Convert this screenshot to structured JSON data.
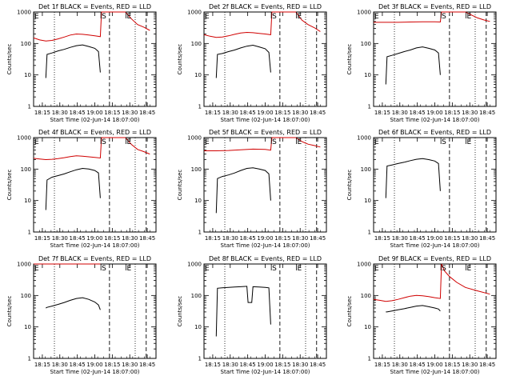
{
  "chart_data": [
    {
      "type": "line",
      "title": "Det 1f BLACK = Events, RED = LLD",
      "xlabel": "Start Time (02-Jun-14 18:07:00)",
      "ylabel": "Counts/sec",
      "yscale": "log",
      "ylim": [
        1,
        1000
      ],
      "yticks": [
        "1",
        "10",
        "100",
        "1000"
      ],
      "xtick_labels": [
        "18:15",
        "18:30",
        "18:45",
        "19:00",
        "18:15",
        "18:30",
        "18:45"
      ],
      "segment_marks": [
        {
          "label": "E",
          "x": 0.0
        },
        {
          "label": "S",
          "x": 0.55
        },
        {
          "label": "E",
          "x": 0.755
        }
      ],
      "series": [
        {
          "name": "BLACK",
          "color": "#000000",
          "x": [
            0.1,
            0.11,
            0.15,
            0.2,
            0.25,
            0.3,
            0.35,
            0.4,
            0.45,
            0.5,
            0.53,
            0.545
          ],
          "y": [
            8,
            45,
            50,
            58,
            65,
            75,
            85,
            90,
            80,
            70,
            55,
            12
          ]
        },
        {
          "name": "RED",
          "color": "#d00000",
          "x": [
            0.0,
            0.05,
            0.1,
            0.15,
            0.2,
            0.25,
            0.3,
            0.35,
            0.4,
            0.45,
            0.5,
            0.545,
            0.555,
            0.7,
            0.75,
            0.8,
            0.85,
            0.9,
            0.95
          ],
          "y": [
            150,
            130,
            120,
            125,
            140,
            160,
            185,
            200,
            195,
            185,
            175,
            165,
            1000,
            1000,
            1000,
            600,
            400,
            330,
            260
          ]
        }
      ]
    },
    {
      "type": "line",
      "title": "Det 2f BLACK = Events, RED = LLD",
      "xlabel": "Start Time (02-Jun-14 18:07:00)",
      "ylabel": "Counts/sec",
      "yscale": "log",
      "ylim": [
        1,
        1000
      ],
      "yticks": [
        "1",
        "10",
        "100",
        "1000"
      ],
      "xtick_labels": [
        "18:15",
        "18:30",
        "18:45",
        "19:00",
        "18:15",
        "18:30",
        "18:45"
      ],
      "segment_marks": [
        {
          "label": "E",
          "x": 0.0
        },
        {
          "label": "S",
          "x": 0.55
        },
        {
          "label": "E",
          "x": 0.755
        }
      ],
      "series": [
        {
          "name": "BLACK",
          "color": "#000000",
          "x": [
            0.1,
            0.11,
            0.15,
            0.2,
            0.25,
            0.3,
            0.35,
            0.4,
            0.45,
            0.5,
            0.53,
            0.545
          ],
          "y": [
            8,
            45,
            48,
            55,
            62,
            72,
            82,
            88,
            78,
            68,
            52,
            12
          ]
        },
        {
          "name": "RED",
          "color": "#d00000",
          "x": [
            0.0,
            0.05,
            0.1,
            0.15,
            0.2,
            0.25,
            0.3,
            0.35,
            0.4,
            0.45,
            0.5,
            0.545,
            0.555,
            0.7,
            0.75,
            0.8,
            0.85,
            0.9,
            0.95
          ],
          "y": [
            190,
            170,
            155,
            160,
            175,
            195,
            215,
            225,
            220,
            210,
            200,
            190,
            1000,
            1000,
            1000,
            550,
            400,
            320,
            240
          ]
        }
      ]
    },
    {
      "type": "line",
      "title": "Det 3f BLACK = Events, RED = LLD",
      "xlabel": "Start Time (02-Jun-14 18:07:00)",
      "ylabel": "Counts/sec",
      "yscale": "log",
      "ylim": [
        1,
        1000
      ],
      "yticks": [
        "1",
        "10",
        "100",
        "1000"
      ],
      "xtick_labels": [
        "18:15",
        "18:30",
        "18:45",
        "19:00",
        "18:15",
        "18:30",
        "18:45"
      ],
      "segment_marks": [
        {
          "label": "E",
          "x": 0.0
        },
        {
          "label": "S",
          "x": 0.55
        },
        {
          "label": "E",
          "x": 0.755
        }
      ],
      "series": [
        {
          "name": "BLACK",
          "color": "#000000",
          "x": [
            0.1,
            0.11,
            0.15,
            0.2,
            0.25,
            0.3,
            0.35,
            0.4,
            0.45,
            0.5,
            0.53,
            0.545
          ],
          "y": [
            5,
            38,
            42,
            48,
            55,
            62,
            72,
            78,
            70,
            62,
            50,
            10
          ]
        },
        {
          "name": "RED",
          "color": "#d00000",
          "x": [
            0.0,
            0.1,
            0.2,
            0.3,
            0.4,
            0.5,
            0.545,
            0.555,
            0.7,
            0.75,
            0.8,
            0.85,
            0.9,
            0.95
          ],
          "y": [
            470,
            470,
            470,
            480,
            490,
            490,
            480,
            1000,
            1000,
            1000,
            800,
            650,
            560,
            500
          ]
        }
      ]
    },
    {
      "type": "line",
      "title": "Det 4f BLACK = Events, RED = LLD",
      "xlabel": "Start Time (02-Jun-14 18:07:00)",
      "ylabel": "Counts/sec",
      "yscale": "log",
      "ylim": [
        1,
        1000
      ],
      "yticks": [
        "1",
        "10",
        "100",
        "1000"
      ],
      "xtick_labels": [
        "18:15",
        "18:30",
        "18:45",
        "19:00",
        "18:15",
        "18:30",
        "18:45"
      ],
      "segment_marks": [
        {
          "label": "E",
          "x": 0.0
        },
        {
          "label": "S",
          "x": 0.55
        },
        {
          "label": "E",
          "x": 0.755
        }
      ],
      "series": [
        {
          "name": "BLACK",
          "color": "#000000",
          "x": [
            0.1,
            0.11,
            0.15,
            0.2,
            0.25,
            0.3,
            0.35,
            0.4,
            0.45,
            0.5,
            0.53,
            0.545
          ],
          "y": [
            5,
            45,
            55,
            62,
            70,
            82,
            95,
            105,
            100,
            90,
            75,
            12
          ]
        },
        {
          "name": "RED",
          "color": "#d00000",
          "x": [
            0.0,
            0.05,
            0.1,
            0.15,
            0.2,
            0.25,
            0.3,
            0.35,
            0.4,
            0.45,
            0.5,
            0.545,
            0.555,
            0.7,
            0.75,
            0.8,
            0.85,
            0.9,
            0.95
          ],
          "y": [
            220,
            210,
            200,
            205,
            215,
            230,
            250,
            265,
            255,
            245,
            235,
            225,
            1000,
            1000,
            1000,
            600,
            420,
            360,
            300
          ]
        }
      ]
    },
    {
      "type": "line",
      "title": "Det 5f BLACK = Events, RED = LLD",
      "xlabel": "Start Time (02-Jun-14 18:07:00)",
      "ylabel": "Counts/sec",
      "yscale": "log",
      "ylim": [
        1,
        1000
      ],
      "yticks": [
        "1",
        "10",
        "100",
        "1000"
      ],
      "xtick_labels": [
        "18:15",
        "18:30",
        "18:45",
        "19:00",
        "18:15",
        "18:30",
        "18:45"
      ],
      "segment_marks": [
        {
          "label": "E",
          "x": 0.0
        },
        {
          "label": "S",
          "x": 0.55
        },
        {
          "label": "E",
          "x": 0.755
        }
      ],
      "series": [
        {
          "name": "BLACK",
          "color": "#000000",
          "x": [
            0.1,
            0.11,
            0.15,
            0.2,
            0.25,
            0.3,
            0.35,
            0.4,
            0.45,
            0.5,
            0.53,
            0.545
          ],
          "y": [
            4,
            50,
            58,
            65,
            75,
            90,
            105,
            110,
            100,
            90,
            70,
            10
          ]
        },
        {
          "name": "RED",
          "color": "#d00000",
          "x": [
            0.0,
            0.1,
            0.2,
            0.3,
            0.4,
            0.5,
            0.545,
            0.555,
            0.7,
            0.75,
            0.8,
            0.85,
            0.9,
            0.95
          ],
          "y": [
            380,
            380,
            390,
            410,
            430,
            420,
            400,
            1000,
            1000,
            1000,
            750,
            620,
            560,
            500
          ]
        }
      ]
    },
    {
      "type": "line",
      "title": "Det 6f BLACK = Events, RED = LLD",
      "xlabel": "Start Time (02-Jun-14 18:07:00)",
      "ylabel": "Counts/sec",
      "yscale": "log",
      "ylim": [
        1,
        1000
      ],
      "yticks": [
        "1",
        "10",
        "100",
        "1000"
      ],
      "xtick_labels": [
        "18:15",
        "18:30",
        "18:45",
        "19:00",
        "18:15",
        "18:30",
        "18:45"
      ],
      "segment_marks": [
        {
          "label": "E",
          "x": 0.0
        },
        {
          "label": "S",
          "x": 0.55
        },
        {
          "label": "E",
          "x": 0.755
        }
      ],
      "series": [
        {
          "name": "BLACK",
          "color": "#000000",
          "x": [
            0.1,
            0.11,
            0.15,
            0.2,
            0.25,
            0.3,
            0.35,
            0.4,
            0.45,
            0.5,
            0.53,
            0.545
          ],
          "y": [
            12,
            125,
            135,
            150,
            165,
            185,
            205,
            215,
            200,
            180,
            150,
            20
          ]
        }
      ]
    },
    {
      "type": "line",
      "title": "Det 7f BLACK = Events, RED = LLD",
      "xlabel": "Start Time (02-Jun-14 18:07:00)",
      "ylabel": "Counts/sec",
      "yscale": "log",
      "ylim": [
        1,
        1000
      ],
      "yticks": [
        "1",
        "10",
        "100",
        "1000"
      ],
      "xtick_labels": [
        "18:15",
        "18:30",
        "18:45",
        "19:00",
        "18:15",
        "18:30",
        "18:45"
      ],
      "segment_marks": [
        {
          "label": "E",
          "x": 0.0
        },
        {
          "label": "S",
          "x": 0.55
        },
        {
          "label": "E",
          "x": 0.755
        }
      ],
      "series": [
        {
          "name": "BLACK",
          "color": "#000000",
          "x": [
            0.1,
            0.11,
            0.15,
            0.2,
            0.25,
            0.3,
            0.35,
            0.4,
            0.45,
            0.5,
            0.53,
            0.545
          ],
          "y": [
            40,
            42,
            46,
            52,
            60,
            70,
            80,
            85,
            75,
            62,
            50,
            35
          ]
        },
        {
          "name": "RED",
          "color": "#d00000",
          "x": [
            0.0,
            0.2,
            0.4,
            0.545
          ],
          "y": [
            1000,
            1000,
            1000,
            1000
          ]
        }
      ]
    },
    {
      "type": "line",
      "title": "Det 8f BLACK = Events, RED = LLD",
      "xlabel": "Start Time (02-Jun-14 18:07:00)",
      "ylabel": "Counts/sec",
      "yscale": "log",
      "ylim": [
        1,
        1000
      ],
      "yticks": [
        "1",
        "10",
        "100",
        "1000"
      ],
      "xtick_labels": [
        "18:15",
        "18:30",
        "18:45",
        "19:00",
        "18:15",
        "18:30",
        "18:45"
      ],
      "segment_marks": [
        {
          "label": "E",
          "x": 0.0
        },
        {
          "label": "S",
          "x": 0.55
        },
        {
          "label": "E",
          "x": 0.755
        }
      ],
      "series": [
        {
          "name": "BLACK",
          "color": "#000000",
          "x": [
            0.1,
            0.11,
            0.15,
            0.2,
            0.25,
            0.3,
            0.35,
            0.36,
            0.39,
            0.4,
            0.45,
            0.5,
            0.53,
            0.545
          ],
          "y": [
            5,
            170,
            175,
            180,
            185,
            190,
            195,
            60,
            60,
            190,
            185,
            180,
            175,
            12
          ]
        }
      ]
    },
    {
      "type": "line",
      "title": "Det 9f BLACK = Events, RED = LLD",
      "xlabel": "Start Time (02-Jun-14 18:07:00)",
      "ylabel": "Counts/sec",
      "yscale": "log",
      "ylim": [
        1,
        1000
      ],
      "yticks": [
        "1",
        "10",
        "100",
        "1000"
      ],
      "xtick_labels": [
        "18:15",
        "18:30",
        "18:45",
        "19:00",
        "18:15",
        "18:30",
        "18:45"
      ],
      "segment_marks": [
        {
          "label": "E",
          "x": 0.0
        },
        {
          "label": "S",
          "x": 0.55
        },
        {
          "label": "E",
          "x": 0.755
        }
      ],
      "series": [
        {
          "name": "BLACK",
          "color": "#000000",
          "x": [
            0.1,
            0.11,
            0.15,
            0.2,
            0.25,
            0.3,
            0.35,
            0.4,
            0.45,
            0.5,
            0.53,
            0.545
          ],
          "y": [
            30,
            30,
            32,
            35,
            38,
            42,
            46,
            48,
            44,
            40,
            37,
            32
          ]
        },
        {
          "name": "RED",
          "color": "#d00000",
          "x": [
            0.0,
            0.05,
            0.1,
            0.15,
            0.2,
            0.25,
            0.3,
            0.35,
            0.4,
            0.45,
            0.5,
            0.545,
            0.555,
            0.58,
            0.62,
            0.68,
            0.75,
            0.85,
            0.95
          ],
          "y": [
            75,
            70,
            65,
            68,
            75,
            85,
            95,
            100,
            98,
            92,
            85,
            80,
            1000,
            600,
            400,
            260,
            180,
            140,
            110
          ]
        }
      ]
    }
  ]
}
